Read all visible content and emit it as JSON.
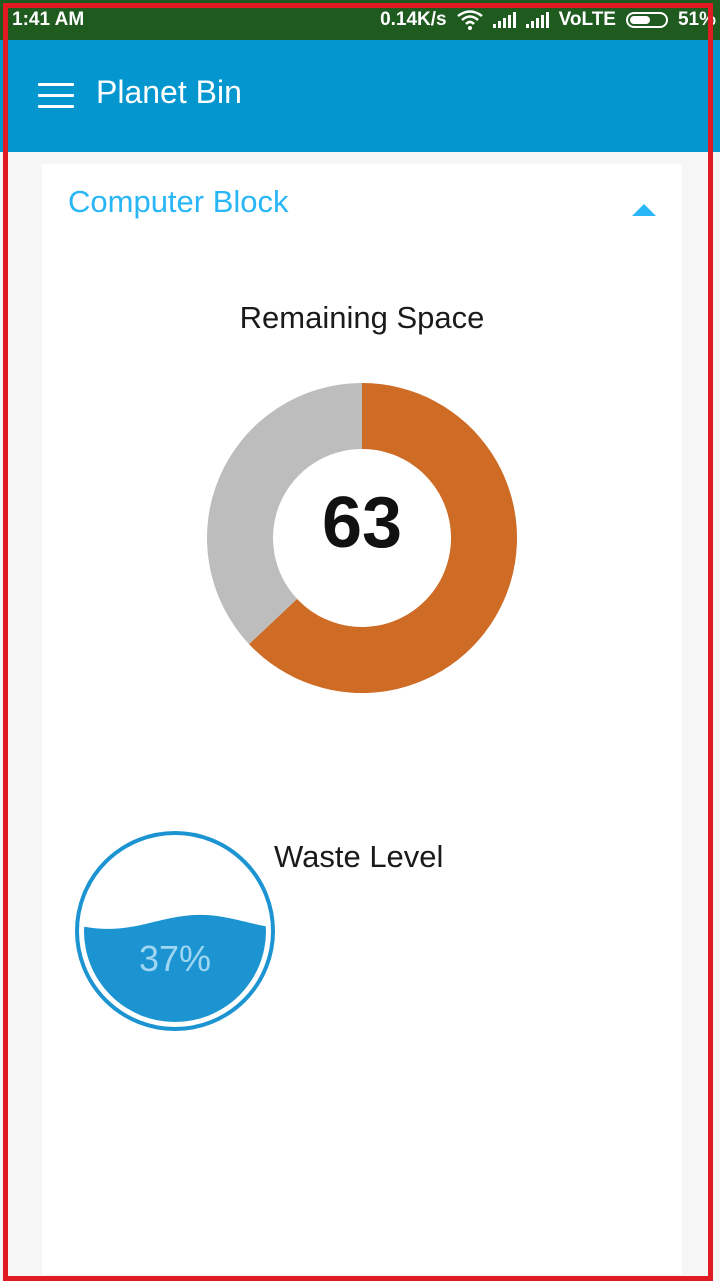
{
  "status_bar": {
    "time": "1:41 AM",
    "network_speed": "0.14K/s",
    "network_type": "VoLTE",
    "battery": "51%",
    "icons": [
      "wifi-icon",
      "signal-icon",
      "signal-icon",
      "battery-icon"
    ]
  },
  "app_bar": {
    "title": "Planet Bin",
    "menu_icon": "hamburger-menu-icon",
    "color": "#0496cf"
  },
  "card": {
    "title": "Computer Block",
    "collapse_icon": "chevron-up-icon",
    "accent": "#29b6f6"
  },
  "remaining_space": {
    "label": "Remaining Space",
    "value": "63",
    "chart_data": {
      "type": "pie",
      "slices": [
        {
          "value": 63,
          "color": "#ce6b25"
        },
        {
          "value": 37,
          "color": "#bdbdbd"
        }
      ]
    }
  },
  "waste_level": {
    "label": "Waste Level",
    "percent_text": "37%",
    "fill_fraction": 0.37,
    "color": "#1c94d2"
  }
}
